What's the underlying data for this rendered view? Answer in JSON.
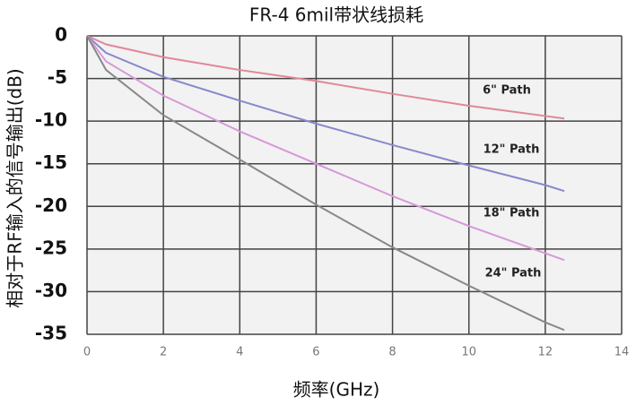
{
  "chart_data": {
    "type": "line",
    "title": "FR-4 6mil带状线损耗",
    "x_label": "频率(GHz)",
    "y_label": "相对于RF输入的信号输出(dB)",
    "x": [
      0,
      0.5,
      2,
      4,
      6,
      8,
      10,
      12,
      12.5
    ],
    "series": [
      {
        "name": "6\" Path",
        "color": "#e08898",
        "values": [
          0,
          -1,
          -2.5,
          -4,
          -5.3,
          -6.8,
          -8.2,
          -9.4,
          -9.7
        ]
      },
      {
        "name": "12\" Path",
        "color": "#8888cc",
        "values": [
          0,
          -2,
          -4.8,
          -7.6,
          -10.3,
          -12.8,
          -15.2,
          -17.5,
          -18.2
        ]
      },
      {
        "name": "18\" Path",
        "color": "#d898d8",
        "values": [
          0,
          -3,
          -7,
          -11.2,
          -15,
          -18.8,
          -22.3,
          -25.5,
          -26.3
        ]
      },
      {
        "name": "24\" Path",
        "color": "#888888",
        "values": [
          0,
          -4,
          -9.3,
          -14.5,
          -19.8,
          -24.8,
          -29.3,
          -33.6,
          -34.5
        ]
      }
    ],
    "xlim": [
      0,
      14
    ],
    "xticks": [
      0,
      2,
      4,
      6,
      8,
      10,
      12,
      14
    ],
    "ylim": [
      -35,
      0
    ],
    "yticks": [
      0,
      -5,
      -10,
      -15,
      -20,
      -25,
      -30,
      -35
    ],
    "grid": true
  }
}
